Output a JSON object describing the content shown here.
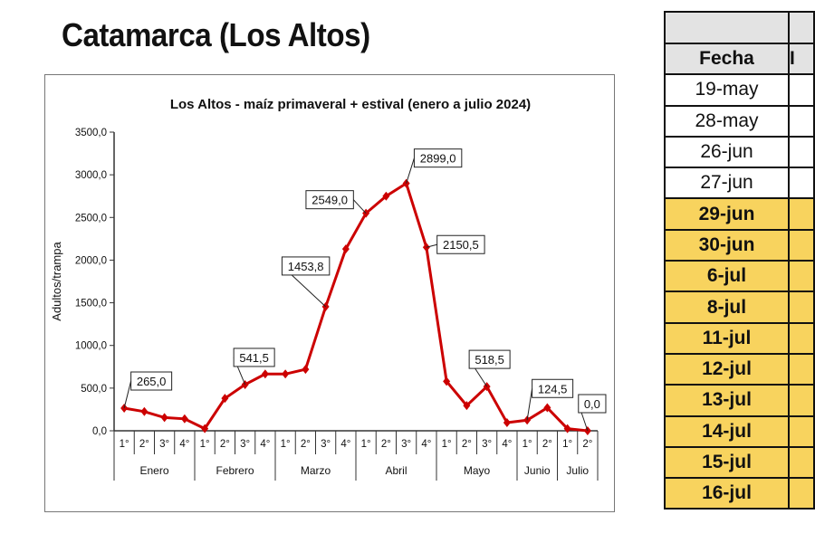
{
  "page_title": "Catamarca (Los Altos)",
  "chart_data": {
    "type": "line",
    "title": "Los Altos  - maíz primaveral + estival (enero a julio 2024)",
    "xlabel": "",
    "ylabel": "Adultos/trampa",
    "ylim": [
      0,
      3500
    ],
    "yticks": [
      "0,0",
      "500,0",
      "1000,0",
      "1500,0",
      "2000,0",
      "2500,0",
      "3000,0",
      "3500,0"
    ],
    "grid": false,
    "color": "#cc0000",
    "months": [
      {
        "name": "Enero",
        "weeks": [
          "1°",
          "2°",
          "3°",
          "4°"
        ]
      },
      {
        "name": "Febrero",
        "weeks": [
          "1°",
          "2°",
          "3°",
          "4°"
        ]
      },
      {
        "name": "Marzo",
        "weeks": [
          "1°",
          "2°",
          "3°",
          "4°"
        ]
      },
      {
        "name": "Abril",
        "weeks": [
          "1°",
          "2°",
          "3°",
          "4°"
        ]
      },
      {
        "name": "Mayo",
        "weeks": [
          "1°",
          "2°",
          "3°",
          "4°"
        ]
      },
      {
        "name": "Junio",
        "weeks": [
          "1°",
          "2°"
        ]
      },
      {
        "name": "Julio",
        "weeks": [
          "1°",
          "2°"
        ]
      }
    ],
    "values": [
      265,
      225,
      155,
      140,
      25,
      380,
      541.5,
      665,
      665,
      720,
      1453.8,
      2130,
      2549,
      2750,
      2899,
      2150.5,
      580,
      295,
      518.5,
      95,
      124.5,
      270,
      25,
      0
    ],
    "data_labels": [
      {
        "index": 0,
        "text": "265,0"
      },
      {
        "index": 6,
        "text": "541,5"
      },
      {
        "index": 10,
        "text": "1453,8"
      },
      {
        "index": 12,
        "text": "2549,0"
      },
      {
        "index": 14,
        "text": "2899,0"
      },
      {
        "index": 15,
        "text": "2150,5"
      },
      {
        "index": 18,
        "text": "518,5"
      },
      {
        "index": 20,
        "text": "124,5"
      },
      {
        "index": 23,
        "text": "0,0"
      }
    ]
  },
  "table": {
    "header": "Fecha",
    "header2": "I",
    "rows": [
      {
        "fecha": "19-may",
        "highlight": false
      },
      {
        "fecha": "28-may",
        "highlight": false
      },
      {
        "fecha": "26-jun",
        "highlight": false
      },
      {
        "fecha": "27-jun",
        "highlight": false
      },
      {
        "fecha": "29-jun",
        "highlight": true
      },
      {
        "fecha": "30-jun",
        "highlight": true
      },
      {
        "fecha": "6-jul",
        "highlight": true
      },
      {
        "fecha": "8-jul",
        "highlight": true
      },
      {
        "fecha": "11-jul",
        "highlight": true
      },
      {
        "fecha": "12-jul",
        "highlight": true
      },
      {
        "fecha": "13-jul",
        "highlight": true
      },
      {
        "fecha": "14-jul",
        "highlight": true
      },
      {
        "fecha": "15-jul",
        "highlight": true
      },
      {
        "fecha": "16-jul",
        "highlight": true
      }
    ]
  }
}
